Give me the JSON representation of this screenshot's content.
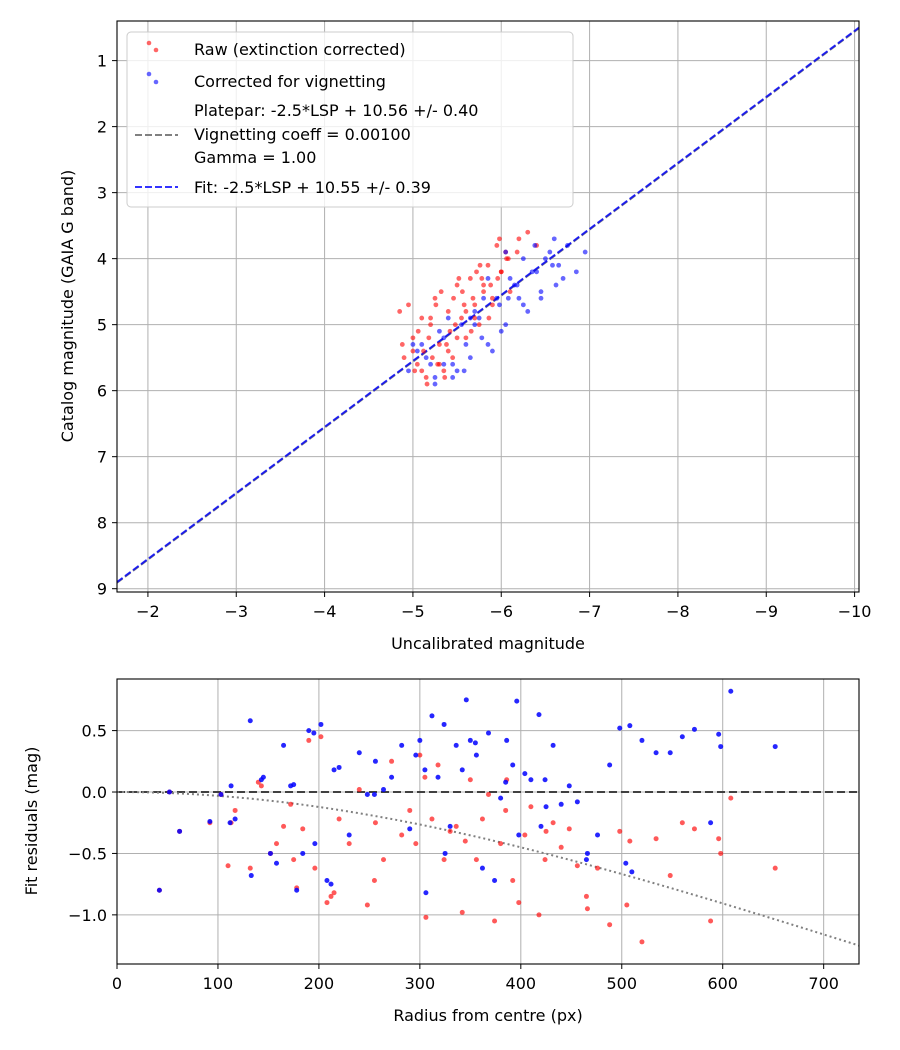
{
  "chart_data": [
    {
      "type": "scatter",
      "xlabel": "Uncalibrated magnitude",
      "ylabel": "Catalog magnitude (GAIA G band)",
      "xlim": [
        -1.65,
        -10.05
      ],
      "ylim": [
        9.05,
        0.4
      ],
      "x_inverted": true,
      "y_inverted": true,
      "grid": true,
      "legend_position": "upper-left",
      "x_ticks": [
        -2,
        -3,
        -4,
        -5,
        -6,
        -7,
        -8,
        -9,
        -10
      ],
      "x_tick_labels": [
        "−2",
        "−3",
        "−4",
        "−5",
        "−6",
        "−7",
        "−8",
        "−9",
        "−10"
      ],
      "y_ticks": [
        1,
        2,
        3,
        4,
        5,
        6,
        7,
        8,
        9
      ],
      "y_tick_labels": [
        "1",
        "2",
        "3",
        "4",
        "5",
        "6",
        "7",
        "8",
        "9"
      ],
      "legend": [
        {
          "label": "Raw (extinction corrected)",
          "kind": "marker",
          "color": "#ff0000"
        },
        {
          "label": "Corrected for vignetting",
          "kind": "marker",
          "color": "#0000ff"
        },
        {
          "label": "Platepar: -2.5*LSP + 10.56 +/- 0.40",
          "label2": "Vignetting coeff = 0.00100",
          "label3": "Gamma = 1.00",
          "kind": "line",
          "color": "#808080"
        },
        {
          "label": "Fit: -2.5*LSP + 10.55 +/- 0.39",
          "kind": "line",
          "color": "#0000ff"
        }
      ],
      "lines": [
        {
          "name": "platepar",
          "slope": 1.0,
          "intercept": 10.56,
          "x_range": [
            -1.65,
            -10.05
          ],
          "color": "#808080",
          "dash": "dashed"
        },
        {
          "name": "fit",
          "slope": 1.0,
          "intercept": 10.55,
          "x_range": [
            -1.65,
            -10.05
          ],
          "color": "#0000ff",
          "dash": "dashed"
        }
      ],
      "series": [
        {
          "name": "Raw (extinction corrected)",
          "color": "#ff0000",
          "x": [
            -4.85,
            -4.9,
            -4.95,
            -5.0,
            -5.05,
            -5.1,
            -5.12,
            -5.15,
            -5.2,
            -5.22,
            -5.25,
            -5.3,
            -5.35,
            -5.4,
            -5.42,
            -5.45,
            -5.5,
            -5.55,
            -5.6,
            -5.65,
            -5.7,
            -5.75,
            -5.8,
            -5.85,
            -5.9,
            -5.95,
            -6.0,
            -6.05,
            -6.1,
            -6.2,
            -6.3,
            -6.4,
            -4.88,
            -5.02,
            -5.18,
            -5.28,
            -5.38,
            -5.48,
            -5.58,
            -5.68,
            -5.78,
            -5.88,
            -5.98,
            -6.08,
            -6.18,
            -5.06,
            -5.16,
            -5.26,
            -5.36,
            -5.46,
            -5.56,
            -5.66,
            -5.76,
            -5.86,
            -5.96,
            -6.06,
            -5.0,
            -5.2,
            -5.4,
            -5.6,
            -5.8,
            -6.0,
            -5.1,
            -5.3,
            -5.5,
            -5.7,
            -5.9,
            -5.32,
            -5.52,
            -5.72
          ],
          "y": [
            4.8,
            5.5,
            4.7,
            5.2,
            5.6,
            4.9,
            5.4,
            5.8,
            5.0,
            5.5,
            4.6,
            5.3,
            5.7,
            4.8,
            5.1,
            5.5,
            4.4,
            4.9,
            5.2,
            4.3,
            4.7,
            5.0,
            4.4,
            4.1,
            4.6,
            3.8,
            4.2,
            3.9,
            4.5,
            3.7,
            3.6,
            3.8,
            5.3,
            5.7,
            5.2,
            5.6,
            5.3,
            5.0,
            4.7,
            4.6,
            4.3,
            4.4,
            3.7,
            4.0,
            3.9,
            5.1,
            5.9,
            4.7,
            5.8,
            4.6,
            4.5,
            5.1,
            4.1,
            4.9,
            4.3,
            4.0,
            5.4,
            4.9,
            5.4,
            4.8,
            4.5,
            4.2,
            5.7,
            5.6,
            5.2,
            4.9,
            4.7,
            4.5,
            4.3,
            4.2
          ]
        },
        {
          "name": "Corrected for vignetting",
          "color": "#0000ff",
          "x": [
            -4.95,
            -5.05,
            -5.15,
            -5.25,
            -5.35,
            -5.45,
            -5.55,
            -5.65,
            -5.75,
            -5.85,
            -5.95,
            -6.05,
            -6.15,
            -6.25,
            -6.35,
            -6.45,
            -6.55,
            -6.65,
            -6.75,
            -6.85,
            -6.95,
            -5.1,
            -5.3,
            -5.5,
            -5.7,
            -5.9,
            -6.1,
            -6.3,
            -6.5,
            -6.7,
            -5.2,
            -5.4,
            -5.6,
            -5.8,
            -6.0,
            -6.2,
            -6.4,
            -6.6,
            -5.25,
            -5.45,
            -5.65,
            -5.85,
            -6.05,
            -6.25,
            -6.45,
            -6.62,
            -5.58,
            -5.78,
            -5.98,
            -6.18,
            -6.38,
            -6.58,
            -5.0,
            -5.35,
            -5.7,
            -6.08
          ],
          "y": [
            5.7,
            5.4,
            5.5,
            5.8,
            5.2,
            5.6,
            5.0,
            5.5,
            4.9,
            5.3,
            4.6,
            5.0,
            4.4,
            4.7,
            4.2,
            4.5,
            3.9,
            4.1,
            3.8,
            4.2,
            3.9,
            5.3,
            5.1,
            5.7,
            4.8,
            5.4,
            4.3,
            4.8,
            4.0,
            4.3,
            5.6,
            4.9,
            5.3,
            4.6,
            5.1,
            4.6,
            4.2,
            3.7,
            5.9,
            5.8,
            4.9,
            4.3,
            3.9,
            4.0,
            4.6,
            4.4,
            5.7,
            5.2,
            4.7,
            4.4,
            3.8,
            4.1,
            5.3,
            5.6,
            5.0,
            4.6
          ]
        }
      ]
    },
    {
      "type": "scatter",
      "xlabel": "Radius from centre (px)",
      "ylabel": "Fit residuals (mag)",
      "xlim": [
        0,
        735
      ],
      "ylim": [
        -1.4,
        0.92
      ],
      "grid": true,
      "x_ticks": [
        0,
        100,
        200,
        300,
        400,
        500,
        600,
        700
      ],
      "x_tick_labels": [
        "0",
        "100",
        "200",
        "300",
        "400",
        "500",
        "600",
        "700"
      ],
      "y_ticks": [
        -1.0,
        -0.5,
        0.0,
        0.5
      ],
      "y_tick_labels": [
        "−1.0",
        "−0.5",
        "0.0",
        "0.5"
      ],
      "lines": [
        {
          "name": "zero",
          "kind": "hline",
          "y": 0.0,
          "color": "#404040",
          "dash": "dashed"
        },
        {
          "name": "vignetting-model",
          "kind": "curve",
          "coeff": 0.001,
          "color": "#808080",
          "dash": "dotted"
        }
      ],
      "series": [
        {
          "name": "Raw (extinction corrected)",
          "color": "#ff0000",
          "x": [
            42,
            52,
            62,
            92,
            103,
            113,
            117,
            132,
            143,
            152,
            158,
            165,
            172,
            178,
            184,
            190,
            196,
            202,
            208,
            212,
            220,
            230,
            240,
            248,
            256,
            264,
            272,
            282,
            290,
            296,
            300,
            306,
            312,
            318,
            324,
            330,
            336,
            342,
            350,
            356,
            362,
            368,
            374,
            380,
            386,
            392,
            398,
            404,
            410,
            418,
            424,
            432,
            440,
            448,
            456,
            466,
            476,
            488,
            498,
            508,
            520,
            534,
            548,
            560,
            572,
            588,
            596,
            598,
            608,
            652,
            110,
            140,
            175,
            215,
            255,
            305,
            345,
            385,
            425,
            465,
            505
          ],
          "y": [
            -0.8,
            0.0,
            -0.32,
            -0.25,
            -0.02,
            -0.25,
            -0.15,
            -0.62,
            0.05,
            -0.5,
            -0.42,
            -0.28,
            -0.1,
            -0.78,
            -0.3,
            0.42,
            -0.62,
            0.45,
            -0.9,
            -0.85,
            -0.22,
            -0.42,
            0.02,
            -0.92,
            -0.25,
            -0.55,
            0.25,
            -0.35,
            -0.15,
            -0.42,
            0.3,
            -1.02,
            -0.22,
            0.22,
            -0.55,
            -0.32,
            -0.28,
            -0.98,
            0.1,
            -0.55,
            -0.22,
            -0.02,
            -1.05,
            -0.42,
            0.1,
            -0.72,
            -0.9,
            -0.35,
            -0.12,
            -1.0,
            -0.55,
            -0.25,
            -0.45,
            -0.3,
            -0.6,
            -0.95,
            -0.62,
            -1.08,
            -0.32,
            -0.4,
            -1.22,
            -0.38,
            -0.68,
            -0.25,
            -0.3,
            -1.05,
            -0.38,
            -0.5,
            -0.05,
            -0.62,
            -0.6,
            0.08,
            -0.55,
            -0.82,
            -0.72,
            0.12,
            -0.4,
            -0.15,
            -0.32,
            -0.85,
            -0.92
          ]
        },
        {
          "name": "Corrected for vignetting",
          "color": "#0000ff",
          "x": [
            42,
            52,
            62,
            92,
            103,
            113,
            117,
            132,
            133,
            143,
            152,
            158,
            165,
            172,
            178,
            184,
            190,
            196,
            202,
            208,
            212,
            220,
            230,
            240,
            248,
            256,
            264,
            272,
            282,
            290,
            296,
            300,
            306,
            312,
            318,
            324,
            330,
            336,
            342,
            346,
            350,
            356,
            362,
            368,
            374,
            380,
            386,
            392,
            396,
            398,
            404,
            410,
            418,
            420,
            424,
            432,
            440,
            448,
            456,
            466,
            476,
            488,
            498,
            504,
            508,
            520,
            534,
            548,
            560,
            572,
            588,
            596,
            598,
            608,
            652,
            112,
            145,
            175,
            195,
            215,
            255,
            305,
            325,
            355,
            385,
            425,
            465,
            510
          ],
          "y": [
            -0.8,
            0.0,
            -0.32,
            -0.24,
            -0.02,
            0.05,
            -0.22,
            0.58,
            -0.68,
            0.1,
            -0.5,
            -0.58,
            0.38,
            0.05,
            -0.8,
            -0.5,
            0.5,
            -0.42,
            0.55,
            -0.72,
            -0.75,
            0.2,
            -0.35,
            0.32,
            -0.02,
            0.25,
            0.02,
            0.12,
            0.38,
            -0.3,
            0.3,
            0.42,
            -0.82,
            0.62,
            0.12,
            0.55,
            -0.28,
            0.38,
            0.18,
            0.75,
            0.42,
            0.3,
            -0.62,
            0.48,
            -0.72,
            -0.05,
            0.42,
            0.22,
            0.74,
            -0.35,
            0.15,
            0.1,
            0.63,
            -0.28,
            0.1,
            0.38,
            -0.1,
            0.05,
            -0.08,
            -0.5,
            -0.35,
            0.22,
            0.52,
            -0.58,
            0.54,
            0.42,
            0.32,
            0.32,
            0.45,
            0.51,
            -0.25,
            0.47,
            0.37,
            0.82,
            0.37,
            -0.25,
            0.12,
            0.06,
            0.48,
            0.18,
            -0.02,
            0.18,
            -0.5,
            0.4,
            0.08,
            -0.12,
            -0.55,
            -0.65
          ]
        }
      ]
    }
  ]
}
